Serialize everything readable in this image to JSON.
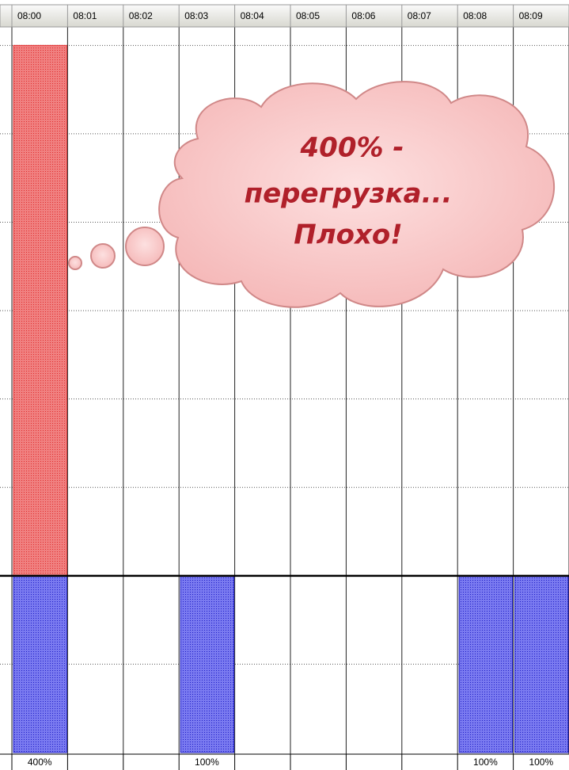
{
  "chart_data": {
    "type": "bar",
    "categories": [
      "08:00",
      "08:01",
      "08:02",
      "08:03",
      "08:04",
      "08:05",
      "08:06",
      "08:07",
      "08:08",
      "08:09"
    ],
    "values": [
      400,
      0,
      0,
      100,
      0,
      0,
      0,
      0,
      100,
      100
    ],
    "value_labels": [
      "400%",
      null,
      null,
      "100%",
      null,
      null,
      null,
      null,
      "100%",
      "100%"
    ],
    "max_units": 100,
    "color": "#2020c8",
    "overallocated_color": "#e03030",
    "ylim": [
      0,
      410
    ],
    "yticks": [
      50,
      100,
      150,
      200,
      250,
      300,
      350,
      400
    ],
    "grid": true
  },
  "annotation": [
    "400% -",
    "перегрузка...",
    "Плохо!"
  ]
}
